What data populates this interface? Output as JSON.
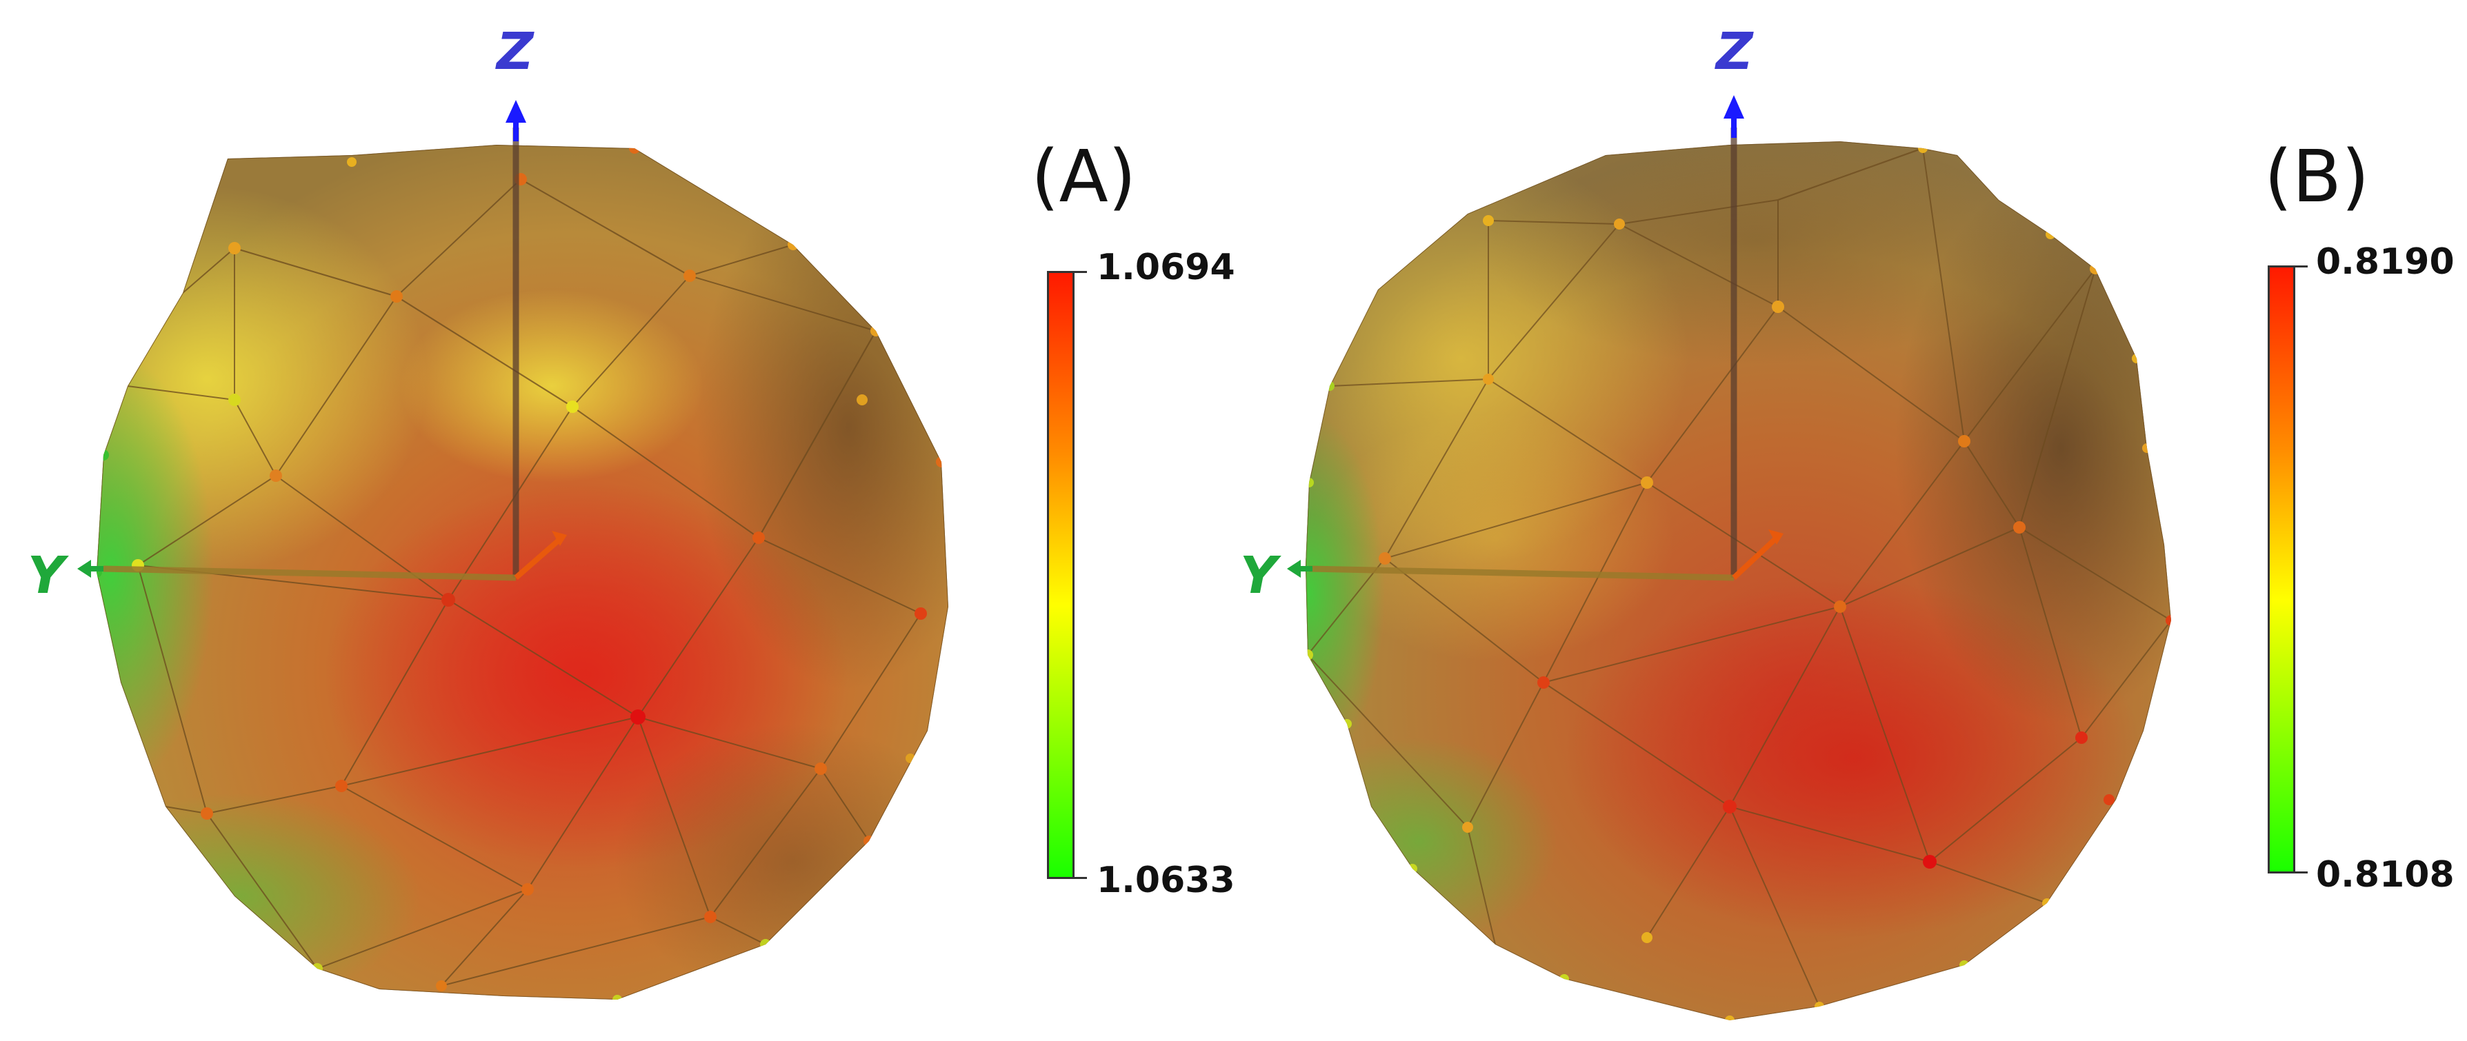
{
  "panels": [
    {
      "id": "A",
      "label": "(A)",
      "axis_labels": {
        "z": "Z",
        "y": "Y"
      },
      "colorbar": {
        "max": "1.0694",
        "min": "1.0633",
        "colors": [
          "#ff1a00",
          "#ff8c00",
          "#ffff00",
          "#1aff00"
        ]
      }
    },
    {
      "id": "B",
      "label": "(B)",
      "axis_labels": {
        "z": "Z",
        "y": "Y"
      },
      "colorbar": {
        "max": "0.8190",
        "min": "0.8108",
        "colors": [
          "#ff1a00",
          "#ff8c00",
          "#ffff00",
          "#1aff00"
        ]
      }
    }
  ],
  "colors": {
    "z_axis": "#1a1aff",
    "y_axis": "#1fa83a",
    "x_axis": "#e8590c",
    "mesh_line": "#6b4a1e"
  }
}
